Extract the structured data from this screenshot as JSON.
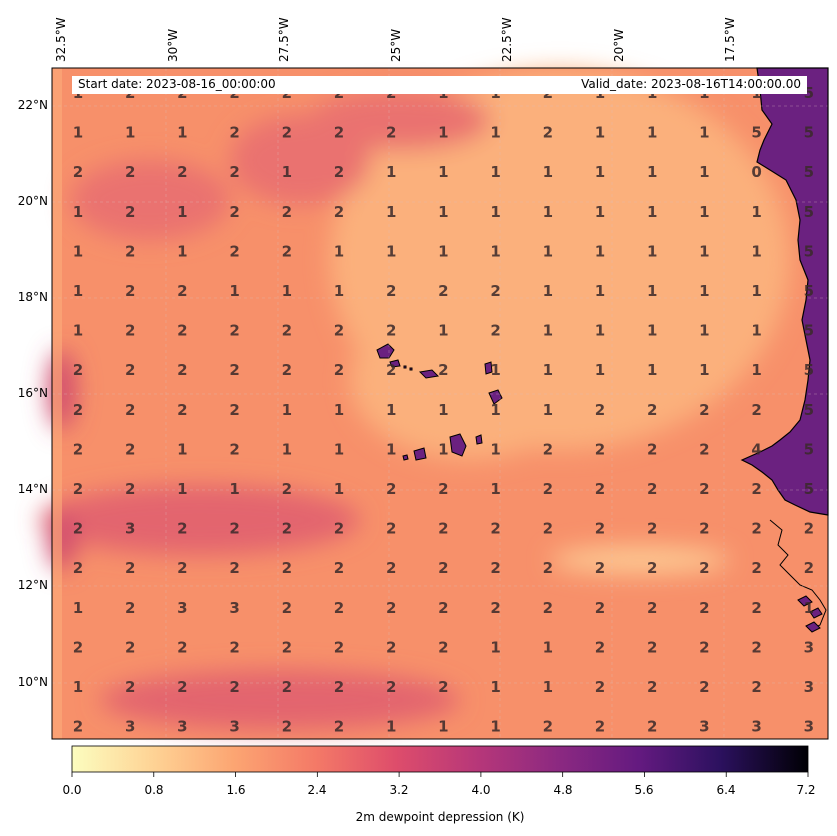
{
  "header": {
    "start_date": "Start date: 2023-08-16_00:00:00",
    "valid_date": "Valid_date: 2023-08-16T14:00:00.00"
  },
  "axes": {
    "lon_labels": [
      "32.5°W",
      "30°W",
      "27.5°W",
      "25°W",
      "22.5°W",
      "20°W",
      "17.5°W"
    ],
    "lat_labels": [
      "22°N",
      "20°N",
      "18°N",
      "16°N",
      "14°N",
      "12°N",
      "10°N"
    ]
  },
  "colorbar": {
    "label": "2m dewpoint depression (K)",
    "ticks": [
      "0.0",
      "0.8",
      "1.6",
      "2.4",
      "3.2",
      "4.0",
      "4.8",
      "5.6",
      "6.4",
      "7.2"
    ],
    "colormap": "magma_r",
    "range": [
      0,
      7.2
    ]
  },
  "grid_values": [
    [
      "1",
      "2",
      "2",
      "2",
      "2",
      "2",
      "2",
      "1",
      "1",
      "2",
      "1",
      "1",
      "1",
      "1",
      "5"
    ],
    [
      "1",
      "1",
      "1",
      "2",
      "2",
      "2",
      "2",
      "1",
      "1",
      "2",
      "1",
      "1",
      "1",
      "5",
      "5"
    ],
    [
      "2",
      "2",
      "2",
      "2",
      "1",
      "2",
      "1",
      "1",
      "1",
      "1",
      "1",
      "1",
      "1",
      "0",
      "5"
    ],
    [
      "1",
      "2",
      "1",
      "2",
      "2",
      "2",
      "1",
      "1",
      "1",
      "1",
      "1",
      "1",
      "1",
      "1",
      "5"
    ],
    [
      "1",
      "2",
      "1",
      "2",
      "2",
      "1",
      "1",
      "1",
      "1",
      "1",
      "1",
      "1",
      "1",
      "1",
      "5"
    ],
    [
      "1",
      "2",
      "2",
      "1",
      "1",
      "1",
      "2",
      "2",
      "2",
      "1",
      "1",
      "1",
      "1",
      "1",
      "5"
    ],
    [
      "1",
      "2",
      "2",
      "2",
      "2",
      "2",
      "2",
      "1",
      "2",
      "1",
      "1",
      "1",
      "1",
      "1",
      "5"
    ],
    [
      "2",
      "2",
      "2",
      "2",
      "2",
      "2",
      "2",
      "2",
      "1",
      "1",
      "1",
      "1",
      "1",
      "1",
      "5"
    ],
    [
      "2",
      "2",
      "2",
      "2",
      "1",
      "1",
      "1",
      "1",
      "1",
      "1",
      "2",
      "2",
      "2",
      "2",
      "5"
    ],
    [
      "2",
      "2",
      "1",
      "2",
      "1",
      "1",
      "1",
      "1",
      "1",
      "2",
      "2",
      "2",
      "2",
      "4",
      "5"
    ],
    [
      "2",
      "2",
      "1",
      "1",
      "2",
      "1",
      "2",
      "2",
      "1",
      "2",
      "2",
      "2",
      "2",
      "2",
      "5"
    ],
    [
      "2",
      "3",
      "2",
      "2",
      "2",
      "2",
      "2",
      "2",
      "2",
      "2",
      "2",
      "2",
      "2",
      "2",
      "2"
    ],
    [
      "2",
      "2",
      "2",
      "2",
      "2",
      "2",
      "2",
      "2",
      "2",
      "2",
      "2",
      "2",
      "2",
      "2",
      "2"
    ],
    [
      "1",
      "2",
      "3",
      "3",
      "2",
      "2",
      "2",
      "2",
      "2",
      "2",
      "2",
      "2",
      "2",
      "2",
      "1"
    ],
    [
      "2",
      "2",
      "2",
      "2",
      "2",
      "2",
      "2",
      "2",
      "1",
      "1",
      "2",
      "2",
      "2",
      "2",
      "3"
    ],
    [
      "1",
      "2",
      "2",
      "2",
      "2",
      "2",
      "2",
      "2",
      "1",
      "1",
      "2",
      "2",
      "2",
      "2",
      "3"
    ],
    [
      "2",
      "3",
      "3",
      "3",
      "2",
      "2",
      "1",
      "1",
      "1",
      "2",
      "2",
      "2",
      "3",
      "3",
      "3"
    ]
  ],
  "colors": {
    "field_base": "#f7906a",
    "field_light": "#fbb07c",
    "field_dark": "#e3656e",
    "land": "#6b2180",
    "coast": "#000000"
  }
}
